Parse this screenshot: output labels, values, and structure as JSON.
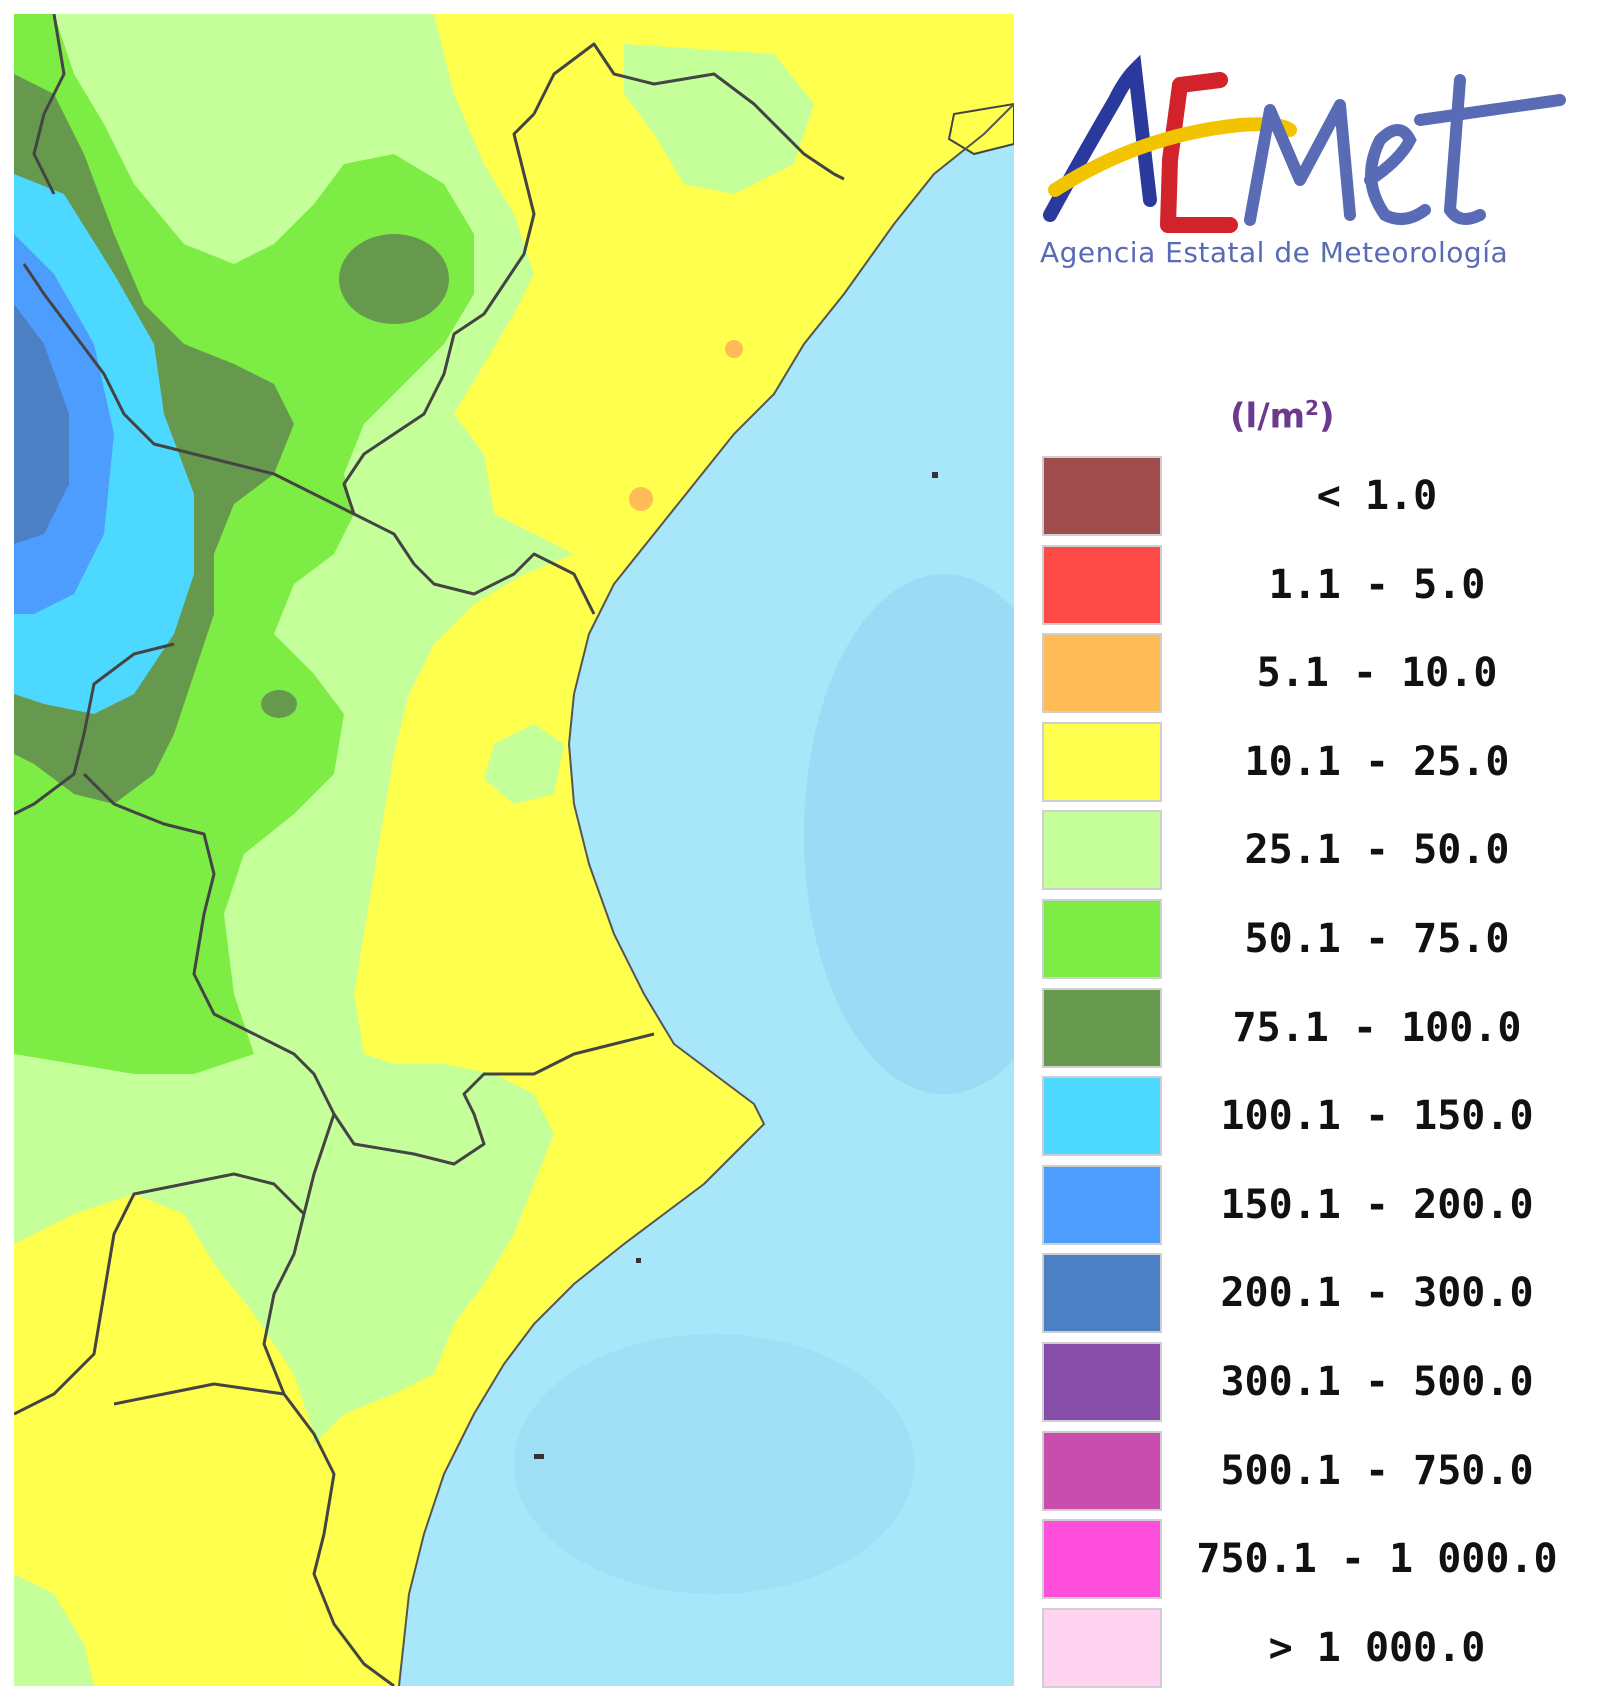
{
  "logo": {
    "wordmark": "AEMet",
    "agency": "Agencia Estatal de Meteorología",
    "colors": {
      "blue": "#2a3a9c",
      "red": "#d2232a",
      "yellow": "#f2c400",
      "purple": "#5a6bb5"
    }
  },
  "legend": {
    "unit_base": "(l/m",
    "unit_sup": "2",
    "unit_close": ")",
    "items": [
      {
        "label": "< 1.0",
        "color": "#a14c4c"
      },
      {
        "label": "1.1 - 5.0",
        "color": "#ff4a4a"
      },
      {
        "label": "5.1 - 10.0",
        "color": "#ffbb55"
      },
      {
        "label": "10.1 - 25.0",
        "color": "#ffff4d"
      },
      {
        "label": "25.1 - 50.0",
        "color": "#c4ff9a"
      },
      {
        "label": "50.1 - 75.0",
        "color": "#7ded45"
      },
      {
        "label": "75.1 - 100.0",
        "color": "#66994d"
      },
      {
        "label": "100.1 - 150.0",
        "color": "#4dd8ff"
      },
      {
        "label": "150.1 - 200.0",
        "color": "#4d9dff"
      },
      {
        "label": "200.1 - 300.0",
        "color": "#4d7fc4"
      },
      {
        "label": "300.1 - 500.0",
        "color": "#884da8"
      },
      {
        "label": "500.1 - 750.0",
        "color": "#c84dad"
      },
      {
        "label": "750.1 - 1 000.0",
        "color": "#ff4ddc"
      },
      {
        "label": "> 1 000.0",
        "color": "#ffd4f0"
      }
    ]
  },
  "map": {
    "sea_color": "#a8e6f9",
    "sea_dark_color": "#90d2f2",
    "border_color": "#444444"
  }
}
